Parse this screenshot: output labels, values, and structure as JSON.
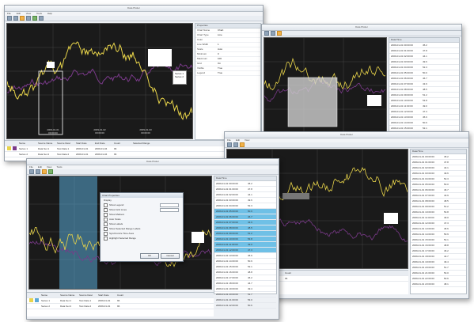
{
  "window_title": "Data Plotter",
  "menu": [
    "File",
    "Edit",
    "View",
    "Tools",
    "Help"
  ],
  "axis_ticks": [
    "2009-01-01 00:00:00",
    "2009-01-02 00:00:00",
    "2009-01-03 00:00:00",
    "2009-01-04 00:00:00"
  ],
  "plot_legend": [
    "Series 1",
    "Series 2"
  ],
  "properties": {
    "title": "Properties",
    "rows": [
      [
        "Chart Name",
        "Chart"
      ],
      [
        "Chart Type",
        "Line"
      ],
      [
        "Color",
        ""
      ],
      [
        "Line Width",
        "1"
      ],
      [
        "Scale",
        "Auto"
      ],
      [
        "Minimum",
        "0"
      ],
      [
        "Maximum",
        "100"
      ],
      [
        "Grid",
        "On"
      ],
      [
        "Visible",
        "True"
      ],
      [
        "Legend",
        "True"
      ]
    ]
  },
  "list_panel": {
    "headers": [
      "Date/Time",
      "Value",
      "Status"
    ],
    "rows": [
      [
        "2009-01-01 00:00:00",
        "45.2",
        "OK"
      ],
      [
        "2009-01-01 01:00:00",
        "47.8",
        "OK"
      ],
      [
        "2009-01-01 02:00:00",
        "44.1",
        "OK"
      ],
      [
        "2009-01-01 03:00:00",
        "49.6",
        "OK"
      ],
      [
        "2009-01-01 04:00:00",
        "52.3",
        "OK"
      ],
      [
        "2009-01-01 05:00:00",
        "50.0",
        "OK"
      ],
      [
        "2009-01-01 06:00:00",
        "46.7",
        "OK"
      ],
      [
        "2009-01-01 07:00:00",
        "43.9",
        "OK"
      ],
      [
        "2009-01-01 08:00:00",
        "48.5",
        "OK"
      ],
      [
        "2009-01-01 09:00:00",
        "51.2",
        "OK"
      ],
      [
        "2009-01-01 10:00:00",
        "53.8",
        "OK"
      ],
      [
        "2009-01-01 11:00:00",
        "49.0",
        "OK"
      ],
      [
        "2009-01-01 12:00:00",
        "47.3",
        "OK"
      ],
      [
        "2009-01-01 13:00:00",
        "45.6",
        "OK"
      ],
      [
        "2009-01-01 14:00:00",
        "50.9",
        "OK"
      ],
      [
        "2009-01-01 15:00:00",
        "52.1",
        "OK"
      ],
      [
        "2009-01-01 16:00:00",
        "48.8",
        "OK"
      ],
      [
        "2009-01-01 17:00:00",
        "46.2",
        "OK"
      ],
      [
        "2009-01-01 18:00:00",
        "44.7",
        "OK"
      ],
      [
        "2009-01-01 19:00:00",
        "49.4",
        "OK"
      ],
      [
        "2009-01-01 20:00:00",
        "51.7",
        "OK"
      ],
      [
        "2009-01-01 21:00:00",
        "53.0",
        "OK"
      ],
      [
        "2009-01-01 22:00:00",
        "50.6",
        "OK"
      ],
      [
        "2009-01-01 23:00:00",
        "48.1",
        "OK"
      ]
    ]
  },
  "bottom_table": {
    "headers": [
      "Name",
      "Source Name",
      "Source Desc",
      "Start Date",
      "End Date",
      "Count",
      "Selected Range"
    ],
    "rows": [
      [
        "Series 1",
        "Data Set 1",
        "Test Data 1",
        "2009-01-01",
        "2009-01-04",
        "96",
        ""
      ],
      [
        "Series 2",
        "Data Set 2",
        "Test Data 2",
        "2009-01-01",
        "2009-01-04",
        "96",
        ""
      ]
    ]
  },
  "dialog": {
    "title": "Chart Properties",
    "section": "Display",
    "options": [
      "Show Legend",
      "Show Grid Lines",
      "Show Markers",
      "Auto Scale",
      "Show Labels",
      "Show Selected Range Labels",
      "Synchronize Time Axes",
      "Highlight Selected Range"
    ],
    "ok_label": "OK",
    "cancel_label": "Cancel"
  },
  "colors": {
    "series_yellow": "#e8d44a",
    "series_purple": "#7a3a8a",
    "selection_blue": "#5aa9d6",
    "accent_orange": "#f2b24a"
  }
}
